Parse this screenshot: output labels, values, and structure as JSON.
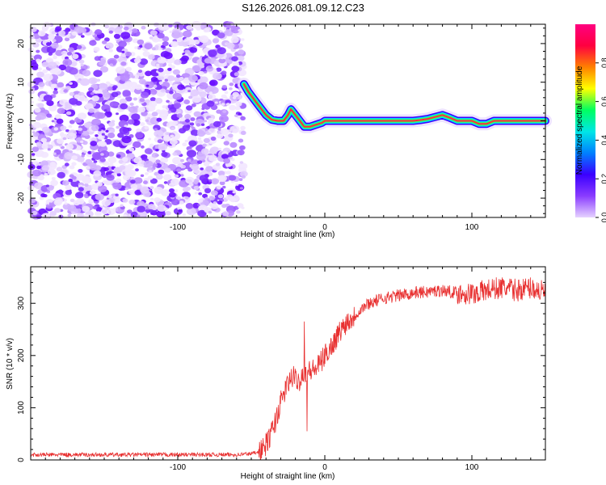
{
  "title": "S126.2026.081.09.12.C23",
  "chart_data": [
    {
      "type": "heatmap",
      "name": "spectrogram",
      "xlabel": "Height of straight line (km)",
      "ylabel": "Frequency (Hz)",
      "xlim": [
        -200,
        150
      ],
      "ylim": [
        -25,
        25
      ],
      "x_ticks": [
        -100,
        0,
        100
      ],
      "y_ticks": [
        -20,
        -10,
        0,
        10,
        20
      ],
      "noise_region_x": [
        -200,
        -55
      ],
      "ridge": {
        "x": [
          -55,
          -52,
          -48,
          -44,
          -40,
          -36,
          -32,
          -28,
          -25,
          -23,
          -20,
          -17,
          -14,
          -10,
          -6,
          -2,
          0,
          10,
          20,
          40,
          60,
          65,
          70,
          75,
          80,
          85,
          90,
          95,
          100,
          105,
          110,
          115,
          120,
          130,
          140,
          150
        ],
        "y": [
          9.5,
          7.5,
          5.5,
          3.5,
          1.5,
          0.3,
          0.0,
          0.0,
          1.5,
          3.0,
          1.5,
          0.0,
          -1.5,
          -1.5,
          -1.0,
          -0.5,
          0.0,
          0.0,
          0.0,
          0.0,
          0.0,
          0.2,
          0.5,
          1.0,
          1.5,
          0.8,
          0.0,
          0.0,
          0.0,
          -0.8,
          -0.8,
          0.0,
          0.0,
          0.0,
          0.0,
          0.0
        ]
      },
      "colorbar": {
        "label": "Normalized spectral amplitude",
        "range": [
          0,
          1
        ],
        "ticks": [
          "0.0",
          "0.2",
          "0.4",
          "0.6",
          "0.8"
        ],
        "colors": [
          "#e6d2ff",
          "#8a3cff",
          "#3a00ff",
          "#0080ff",
          "#00e6e6",
          "#00ff60",
          "#ffff00",
          "#ff8000",
          "#ff0040",
          "#ff0080"
        ]
      }
    },
    {
      "type": "line",
      "name": "snr",
      "xlabel": "Height of straight line (km)",
      "ylabel": "SNR (10 * v/v)",
      "xlim": [
        -200,
        150
      ],
      "ylim": [
        0,
        370
      ],
      "x_ticks": [
        -100,
        0,
        100
      ],
      "y_ticks": [
        0,
        100,
        200,
        300
      ],
      "color": "#e83030",
      "series": [
        {
          "name": "SNR",
          "x": [
            -200,
            -150,
            -100,
            -60,
            -50,
            -42,
            -38,
            -34,
            -30,
            -26,
            -22,
            -18,
            -14,
            -10,
            -6,
            -2,
            0,
            5,
            10,
            15,
            20,
            25,
            30,
            40,
            50,
            60,
            70,
            80,
            90,
            100,
            110,
            120,
            130,
            140,
            150
          ],
          "y": [
            10,
            10,
            10,
            10,
            12,
            20,
            40,
            70,
            110,
            140,
            160,
            150,
            170,
            170,
            175,
            190,
            200,
            220,
            245,
            265,
            275,
            290,
            300,
            310,
            315,
            320,
            322,
            325,
            320,
            318,
            325,
            330,
            325,
            330,
            320
          ],
          "spikes": [
            {
              "x": -14,
              "y": 265
            },
            {
              "x": -12,
              "y": 55
            }
          ]
        }
      ]
    }
  ]
}
